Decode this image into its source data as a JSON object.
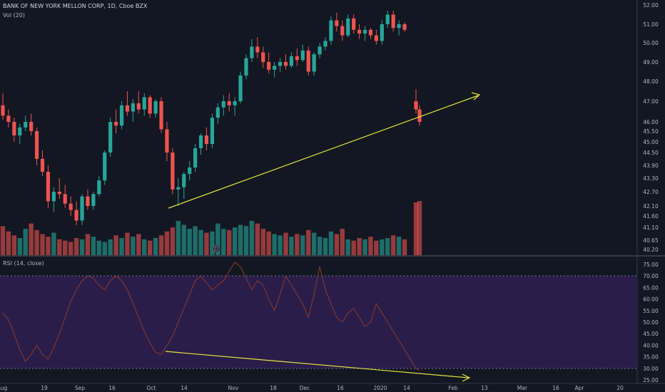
{
  "header": {
    "title": "BANK OF NEW YORK MELLON CORP, 1D, Cboe BZX",
    "volume_label": "Vol (20)",
    "rsi_label": "RSI (14, close)"
  },
  "colors": {
    "background": "#131722",
    "up": "#26a69a",
    "down": "#ef5350",
    "rsi_line": "#8a3a2a",
    "rsi_band": "#2a1d4a",
    "trendline": "#e4e63a",
    "text": "#b2b5be"
  },
  "chart_data": {
    "type": "candlestick",
    "price_ticks": [
      "52.00",
      "51.00",
      "50.00",
      "49.00",
      "48.00",
      "47.00",
      "46.00",
      "45.50",
      "45.00",
      "44.50",
      "43.90",
      "43.30",
      "42.70",
      "42.10",
      "41.60",
      "41.10",
      "40.65",
      "40.20"
    ],
    "rsi_ticks": [
      "75.00",
      "70.00",
      "65.00",
      "60.00",
      "55.00",
      "50.00",
      "45.00",
      "40.00",
      "35.00",
      "30.00",
      "25.00"
    ],
    "rsi_band": [
      30,
      70
    ],
    "x_ticks": [
      "Aug",
      "19",
      "Sep",
      "16",
      "Oct",
      "14",
      "Nov",
      "18",
      "Dec",
      "16",
      "2020",
      "14",
      "Feb",
      "13",
      "Mar",
      "16",
      "Apr",
      "20"
    ],
    "event_marker": "D",
    "candles": [
      [
        46.8,
        47.4,
        46.1,
        46.3
      ],
      [
        46.3,
        46.6,
        45.7,
        46.0
      ],
      [
        46.0,
        46.2,
        45.0,
        45.3
      ],
      [
        45.3,
        45.9,
        44.9,
        45.7
      ],
      [
        45.7,
        46.3,
        45.5,
        46.0
      ],
      [
        46.0,
        46.4,
        45.3,
        45.5
      ],
      [
        45.5,
        45.7,
        43.9,
        44.2
      ],
      [
        44.2,
        44.6,
        43.4,
        43.6
      ],
      [
        43.6,
        43.9,
        42.0,
        42.3
      ],
      [
        42.3,
        42.9,
        41.8,
        42.7
      ],
      [
        42.7,
        43.3,
        42.4,
        42.6
      ],
      [
        42.6,
        43.0,
        42.0,
        42.2
      ],
      [
        42.2,
        42.5,
        41.6,
        41.9
      ],
      [
        41.9,
        42.3,
        41.2,
        41.4
      ],
      [
        41.4,
        42.6,
        41.2,
        42.5
      ],
      [
        42.5,
        42.8,
        41.9,
        42.1
      ],
      [
        42.1,
        42.7,
        41.9,
        42.6
      ],
      [
        42.6,
        43.4,
        42.5,
        43.2
      ],
      [
        43.2,
        44.6,
        43.0,
        44.5
      ],
      [
        44.5,
        46.2,
        44.3,
        46.0
      ],
      [
        46.0,
        46.6,
        45.4,
        45.8
      ],
      [
        45.8,
        47.0,
        45.6,
        46.8
      ],
      [
        46.8,
        47.5,
        46.3,
        46.5
      ],
      [
        46.5,
        47.1,
        46.0,
        46.9
      ],
      [
        46.9,
        47.5,
        46.4,
        46.6
      ],
      [
        46.6,
        47.4,
        46.3,
        47.2
      ],
      [
        47.2,
        47.3,
        46.2,
        46.4
      ],
      [
        46.4,
        47.1,
        46.2,
        47.0
      ],
      [
        47.0,
        47.2,
        45.4,
        45.6
      ],
      [
        45.6,
        46.0,
        44.1,
        44.5
      ],
      [
        44.5,
        44.7,
        42.6,
        42.8
      ],
      [
        42.8,
        43.3,
        42.1,
        42.9
      ],
      [
        42.9,
        43.6,
        42.4,
        43.5
      ],
      [
        43.5,
        44.1,
        43.2,
        43.8
      ],
      [
        43.8,
        44.9,
        43.6,
        44.7
      ],
      [
        44.7,
        45.4,
        44.4,
        45.3
      ],
      [
        45.3,
        45.7,
        44.6,
        44.9
      ],
      [
        44.9,
        46.4,
        44.7,
        46.2
      ],
      [
        46.2,
        46.9,
        45.9,
        46.7
      ],
      [
        46.7,
        47.3,
        46.3,
        47.0
      ],
      [
        47.0,
        47.4,
        46.5,
        46.8
      ],
      [
        46.8,
        47.2,
        46.3,
        47.0
      ],
      [
        47.0,
        48.5,
        46.9,
        48.3
      ],
      [
        48.3,
        49.4,
        48.1,
        49.2
      ],
      [
        49.2,
        50.2,
        49.0,
        49.8
      ],
      [
        49.8,
        50.3,
        49.2,
        49.5
      ],
      [
        49.5,
        49.8,
        48.7,
        49.0
      ],
      [
        49.0,
        49.5,
        48.4,
        48.6
      ],
      [
        48.6,
        49.0,
        48.2,
        48.8
      ],
      [
        48.8,
        49.2,
        48.5,
        49.0
      ],
      [
        49.0,
        49.4,
        48.6,
        48.8
      ],
      [
        48.8,
        49.5,
        48.7,
        49.3
      ],
      [
        49.3,
        49.7,
        48.8,
        49.1
      ],
      [
        49.1,
        49.9,
        49.0,
        49.6
      ],
      [
        49.6,
        49.8,
        48.3,
        48.5
      ],
      [
        48.5,
        49.5,
        48.3,
        49.4
      ],
      [
        49.4,
        50.0,
        49.2,
        49.8
      ],
      [
        49.8,
        50.3,
        49.6,
        50.1
      ],
      [
        50.1,
        51.4,
        49.9,
        51.2
      ],
      [
        51.2,
        51.6,
        50.6,
        50.9
      ],
      [
        50.9,
        51.2,
        50.1,
        50.4
      ],
      [
        50.4,
        51.5,
        50.3,
        51.3
      ],
      [
        51.3,
        51.5,
        50.5,
        50.7
      ],
      [
        50.7,
        51.0,
        50.2,
        50.5
      ],
      [
        50.5,
        50.9,
        50.1,
        50.7
      ],
      [
        50.7,
        50.8,
        50.2,
        50.4
      ],
      [
        50.4,
        50.7,
        49.9,
        50.1
      ],
      [
        50.1,
        51.2,
        49.9,
        51.0
      ],
      [
        51.0,
        51.7,
        50.8,
        51.5
      ],
      [
        51.5,
        51.7,
        50.6,
        50.8
      ],
      [
        50.8,
        51.2,
        50.4,
        51.0
      ],
      [
        51.0,
        51.1,
        50.6,
        50.7
      ],
      [
        47.0,
        47.6,
        46.4,
        46.6
      ],
      [
        46.6,
        46.8,
        45.8,
        46.0
      ]
    ],
    "rsi_values": [
      54,
      51,
      45,
      38,
      33,
      36,
      40,
      36,
      34,
      39,
      45,
      52,
      59,
      64,
      68,
      70,
      69,
      66,
      64,
      68,
      70,
      68,
      64,
      58,
      52,
      46,
      41,
      37,
      36,
      40,
      44,
      50,
      56,
      62,
      68,
      70,
      67,
      64,
      66,
      68,
      72,
      76,
      74,
      69,
      64,
      68,
      66,
      60,
      55,
      62,
      70,
      66,
      62,
      58,
      52,
      62,
      74,
      64,
      58,
      52,
      50,
      54,
      56,
      52,
      48,
      50,
      58,
      54,
      50,
      46,
      42,
      38,
      30,
      29
    ],
    "volume": [
      22,
      18,
      15,
      13,
      20,
      24,
      19,
      16,
      14,
      17,
      12,
      11,
      10,
      13,
      12,
      16,
      14,
      11,
      10,
      12,
      15,
      13,
      17,
      14,
      16,
      12,
      11,
      13,
      15,
      18,
      21,
      26,
      23,
      20,
      22,
      19,
      17,
      18,
      24,
      20,
      19,
      21,
      23,
      22,
      26,
      24,
      20,
      18,
      16,
      15,
      17,
      14,
      16,
      15,
      19,
      17,
      14,
      13,
      18,
      16,
      20,
      12,
      11,
      13,
      12,
      14,
      11,
      12,
      13,
      15,
      14,
      12,
      40,
      41
    ]
  }
}
